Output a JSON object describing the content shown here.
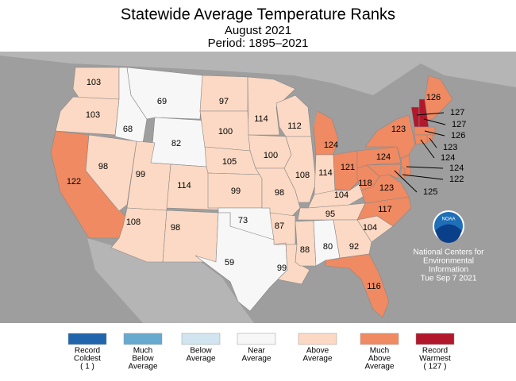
{
  "header": {
    "title": "Statewide Average Temperature Ranks",
    "subtitle": "August 2021",
    "period": "Period: 1895–2021"
  },
  "states": [
    {
      "rank": 103,
      "color": "#fcd9c4"
    },
    {
      "rank": 103,
      "color": "#fcd9c4"
    },
    {
      "rank": 122,
      "color": "#ef8a62"
    },
    {
      "rank": 98,
      "color": "#fcd9c4"
    },
    {
      "rank": 68,
      "color": "#f7f7f7"
    },
    {
      "rank": 69,
      "color": "#f7f7f7"
    },
    {
      "rank": 82,
      "color": "#f7f7f7"
    },
    {
      "rank": 99,
      "color": "#fcd9c4"
    },
    {
      "rank": 114,
      "color": "#fcd9c4"
    },
    {
      "rank": 108,
      "color": "#fcd9c4"
    },
    {
      "rank": 98,
      "color": "#fcd9c4"
    },
    {
      "rank": 97,
      "color": "#fcd9c4"
    },
    {
      "rank": 100,
      "color": "#fcd9c4"
    },
    {
      "rank": 105,
      "color": "#fcd9c4"
    },
    {
      "rank": 99,
      "color": "#fcd9c4"
    },
    {
      "rank": 73,
      "color": "#f7f7f7"
    },
    {
      "rank": 59,
      "color": "#f7f7f7"
    },
    {
      "rank": 114,
      "color": "#fcd9c4"
    },
    {
      "rank": 100,
      "color": "#fcd9c4"
    },
    {
      "rank": 98,
      "color": "#fcd9c4"
    },
    {
      "rank": 87,
      "color": "#fcd9c4"
    },
    {
      "rank": 99,
      "color": "#fcd9c4"
    },
    {
      "rank": 112,
      "color": "#fcd9c4"
    },
    {
      "rank": 108,
      "color": "#fcd9c4"
    },
    {
      "rank": 124,
      "color": "#ef8a62"
    },
    {
      "rank": 114,
      "color": "#fcd9c4"
    },
    {
      "rank": 121,
      "color": "#ef8a62"
    },
    {
      "rank": 104,
      "color": "#fcd9c4"
    },
    {
      "rank": 95,
      "color": "#fcd9c4"
    },
    {
      "rank": 88,
      "color": "#fcd9c4"
    },
    {
      "rank": 80,
      "color": "#f7f7f7"
    },
    {
      "rank": 92,
      "color": "#fcd9c4"
    },
    {
      "rank": 116,
      "color": "#ef8a62"
    },
    {
      "rank": 104,
      "color": "#fcd9c4"
    },
    {
      "rank": 117,
      "color": "#ef8a62"
    },
    {
      "rank": 123,
      "color": "#ef8a62"
    },
    {
      "rank": 118,
      "color": "#ef8a62"
    },
    {
      "rank": 124,
      "color": "#ef8a62"
    },
    {
      "rank": 123,
      "color": "#ef8a62"
    },
    {
      "rank": 126,
      "color": "#ef8a62"
    },
    {
      "rank": 127,
      "color": "#b2182b"
    },
    {
      "rank": 127,
      "color": "#b2182b"
    },
    {
      "rank": 126,
      "color": "#ef8a62"
    },
    {
      "rank": 123,
      "color": "#ef8a62"
    },
    {
      "rank": 124,
      "color": "#ef8a62"
    },
    {
      "rank": 124,
      "color": "#ef8a62"
    },
    {
      "rank": 122,
      "color": "#ef8a62"
    },
    {
      "rank": 125,
      "color": "#ef8a62"
    }
  ],
  "legend": [
    {
      "label": [
        "Record",
        "Coldest",
        "( 1 )"
      ],
      "color": "#2166ac"
    },
    {
      "label": [
        "Much",
        "Below",
        "Average"
      ],
      "color": "#67a9cf"
    },
    {
      "label": [
        "Below",
        "Average"
      ],
      "color": "#d1e5f0"
    },
    {
      "label": [
        "Near",
        "Average"
      ],
      "color": "#f7f7f7"
    },
    {
      "label": [
        "Above",
        "Average"
      ],
      "color": "#fcd9c4"
    },
    {
      "label": [
        "Much",
        "Above",
        "Average"
      ],
      "color": "#ef8a62"
    },
    {
      "label": [
        "Record",
        "Warmest",
        "( 127 )"
      ],
      "color": "#b2182b"
    }
  ],
  "logo": "NOAA",
  "credit": [
    "National Centers for",
    "Environmental",
    "Information",
    "Tue Sep  7 2021"
  ]
}
